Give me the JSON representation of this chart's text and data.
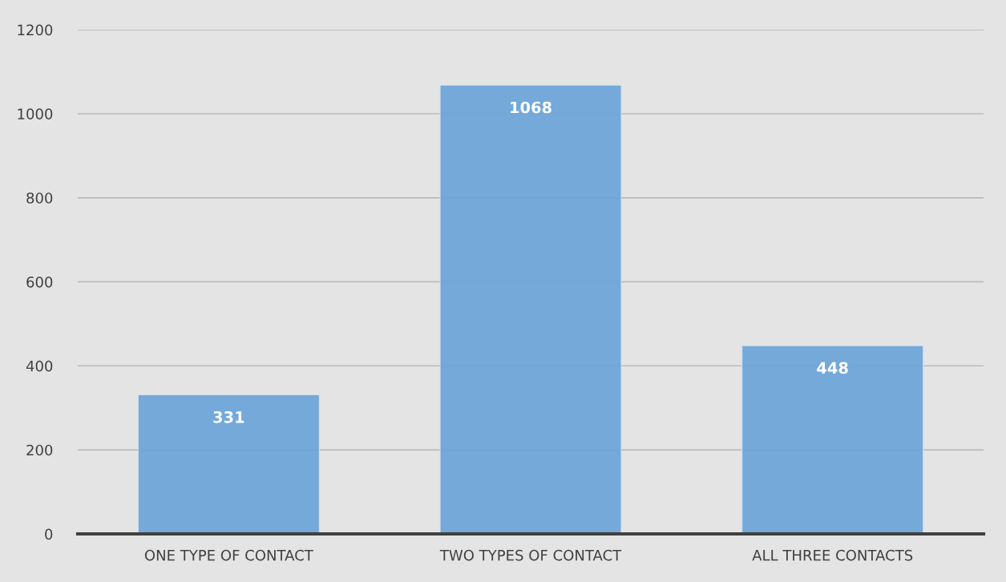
{
  "chart_data": {
    "type": "bar",
    "categories": [
      "ONE TYPE OF CONTACT",
      "TWO TYPES OF CONTACT",
      "ALL THREE CONTACTS"
    ],
    "values": [
      331,
      1068,
      448
    ],
    "color": "#6fa6d9",
    "ylim": [
      0,
      1200
    ],
    "yticks": [
      0,
      200,
      400,
      600,
      800,
      1000,
      1200
    ],
    "grid": "y",
    "data_labels": true,
    "legend": false
  }
}
